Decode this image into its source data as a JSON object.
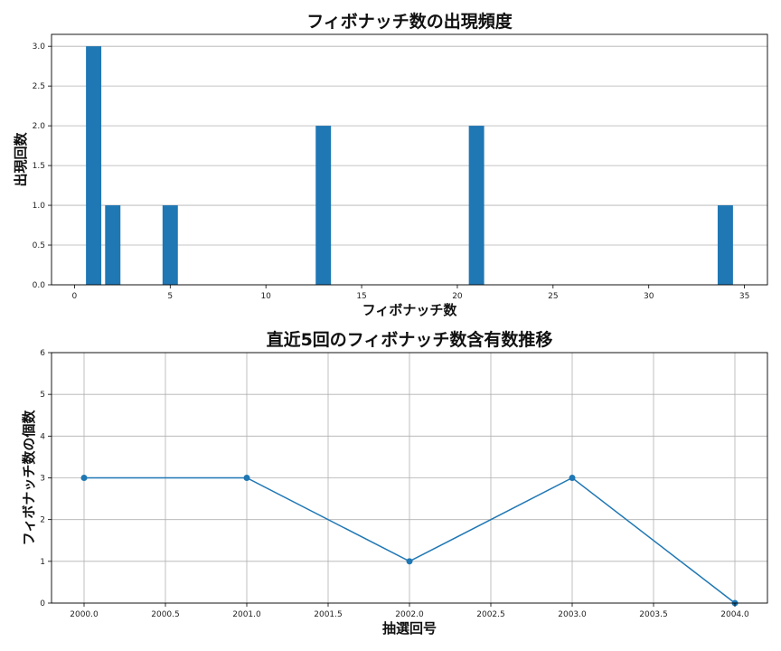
{
  "colors": {
    "bar": "#1f77b4",
    "line": "#1f77b4",
    "grid": "#b0b0b0"
  },
  "chart_data": [
    {
      "type": "bar",
      "title": "フィボナッチ数の出現頻度",
      "xlabel": "フィボナッチ数",
      "ylabel": "出現回数",
      "x": [
        1,
        2,
        5,
        13,
        21,
        34
      ],
      "values": [
        3,
        1,
        1,
        2,
        2,
        1
      ],
      "xlim": [
        -1.2,
        36.2
      ],
      "ylim": [
        0,
        3.15
      ],
      "xticks": [
        0,
        5,
        10,
        15,
        20,
        25,
        30,
        35
      ],
      "xtick_labels": [
        "0",
        "5",
        "10",
        "15",
        "20",
        "25",
        "30",
        "35"
      ],
      "yticks": [
        0,
        0.5,
        1,
        1.5,
        2,
        2.5,
        3
      ],
      "ytick_labels": [
        "0.0",
        "0.5",
        "1.0",
        "1.5",
        "2.0",
        "2.5",
        "3.0"
      ],
      "grid": "y"
    },
    {
      "type": "line",
      "title": "直近5回のフィボナッチ数含有数推移",
      "xlabel": "抽選回号",
      "ylabel": "フィボナッチ数の個数",
      "x": [
        2000,
        2001,
        2002,
        2003,
        2004
      ],
      "values": [
        3,
        3,
        1,
        3,
        0
      ],
      "xlim": [
        1999.8,
        2004.2
      ],
      "ylim": [
        0,
        6
      ],
      "xticks": [
        2000,
        2000.5,
        2001,
        2001.5,
        2002,
        2002.5,
        2003,
        2003.5,
        2004
      ],
      "xtick_labels": [
        "2000.0",
        "2000.5",
        "2001.0",
        "2001.5",
        "2002.0",
        "2002.5",
        "2003.0",
        "2003.5",
        "2004.0"
      ],
      "yticks": [
        0,
        1,
        2,
        3,
        4,
        5,
        6
      ],
      "ytick_labels": [
        "0",
        "1",
        "2",
        "3",
        "4",
        "5",
        "6"
      ],
      "grid": "both",
      "markers": true
    }
  ]
}
